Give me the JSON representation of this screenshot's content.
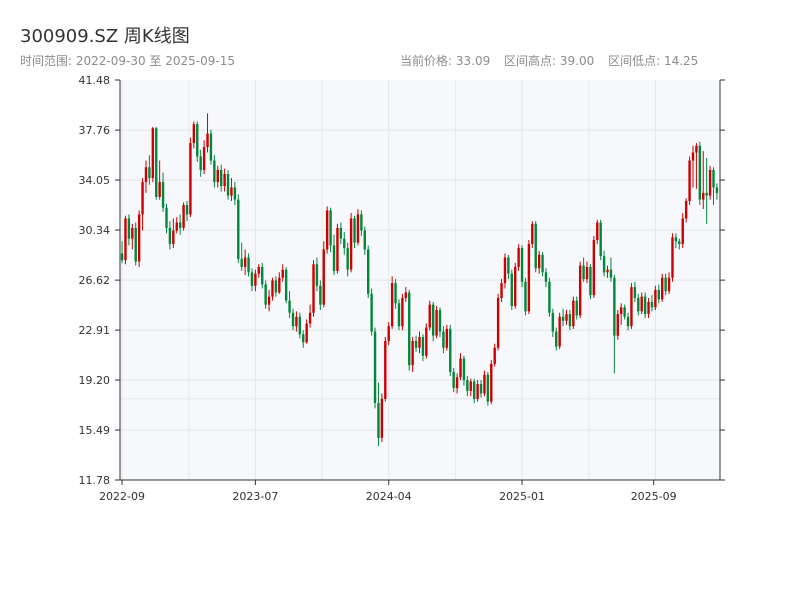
{
  "header": {
    "title": "300909.SZ 周K线图",
    "range_text": "时间范围: 2022-09-30 至 2025-09-15",
    "current_price": "当前价格: 33.09",
    "range_high": "区间高点: 39.00",
    "range_low": "区间低点: 14.25"
  },
  "chart_data": {
    "type": "candlestick",
    "title": "300909.SZ 周K线图",
    "ylim": [
      11.78,
      41.48
    ],
    "y_ticks": [
      "41.48",
      "37.76",
      "34.05",
      "30.34",
      "26.62",
      "22.91",
      "19.20",
      "15.49",
      "11.78"
    ],
    "x_ticks": [
      "2022-09",
      "2023-07",
      "2024-04",
      "2025-01",
      "2025-09"
    ],
    "grid": true,
    "colors": {
      "up": "#cc0000",
      "down": "#00873c"
    },
    "candles": [
      [
        28.6,
        28.1,
        29.5,
        27.9
      ],
      [
        28.1,
        31.2,
        31.4,
        27.8
      ],
      [
        31.2,
        29.7,
        31.5,
        29.2
      ],
      [
        29.7,
        30.5,
        30.8,
        28.9
      ],
      [
        30.5,
        28.0,
        30.9,
        27.7
      ],
      [
        28.0,
        31.5,
        31.8,
        27.6
      ],
      [
        31.5,
        33.9,
        34.2,
        30.3
      ],
      [
        33.9,
        35.0,
        35.5,
        33.1
      ],
      [
        35.0,
        34.2,
        35.9,
        33.7
      ],
      [
        34.2,
        37.9,
        38.0,
        33.9
      ],
      [
        37.9,
        32.8,
        38.0,
        32.6
      ],
      [
        32.8,
        33.9,
        35.5,
        32.6
      ],
      [
        33.9,
        32.0,
        34.6,
        31.7
      ],
      [
        32.0,
        30.5,
        32.3,
        30.1
      ],
      [
        30.5,
        29.3,
        31.0,
        28.9
      ],
      [
        29.3,
        30.3,
        31.2,
        29.0
      ],
      [
        30.3,
        30.9,
        31.3,
        30.1
      ],
      [
        30.9,
        30.5,
        31.5,
        30.0
      ],
      [
        30.5,
        32.2,
        32.4,
        30.3
      ],
      [
        32.2,
        31.5,
        32.5,
        31.0
      ],
      [
        31.5,
        36.8,
        37.2,
        31.3
      ],
      [
        36.8,
        38.2,
        38.4,
        36.4
      ],
      [
        38.2,
        35.8,
        38.4,
        35.4
      ],
      [
        35.8,
        34.8,
        36.3,
        34.3
      ],
      [
        34.8,
        36.5,
        37.0,
        34.5
      ],
      [
        36.5,
        37.5,
        39.0,
        36.1
      ],
      [
        37.5,
        35.5,
        37.8,
        35.2
      ],
      [
        35.5,
        33.9,
        35.9,
        33.5
      ],
      [
        33.9,
        34.8,
        35.1,
        33.5
      ],
      [
        34.8,
        33.6,
        35.2,
        33.2
      ],
      [
        33.6,
        34.5,
        34.9,
        33.2
      ],
      [
        34.5,
        32.9,
        34.8,
        32.6
      ],
      [
        32.9,
        33.5,
        34.2,
        32.5
      ],
      [
        33.5,
        32.6,
        33.9,
        32.2
      ],
      [
        32.6,
        28.2,
        33.0,
        27.9
      ],
      [
        28.2,
        27.6,
        29.4,
        27.3
      ],
      [
        27.6,
        28.3,
        28.9,
        27.0
      ],
      [
        28.3,
        27.2,
        28.6,
        26.9
      ],
      [
        27.2,
        26.2,
        27.5,
        25.8
      ],
      [
        26.2,
        27.1,
        27.4,
        25.8
      ],
      [
        27.1,
        27.6,
        27.8,
        26.8
      ],
      [
        27.6,
        26.3,
        27.9,
        26.0
      ],
      [
        26.3,
        24.8,
        26.6,
        24.5
      ],
      [
        24.8,
        25.4,
        25.9,
        24.3
      ],
      [
        25.4,
        26.6,
        26.8,
        25.1
      ],
      [
        26.6,
        25.7,
        26.9,
        25.4
      ],
      [
        25.7,
        26.8,
        27.2,
        25.6
      ],
      [
        26.8,
        27.4,
        27.8,
        26.5
      ],
      [
        27.4,
        25.1,
        27.6,
        24.9
      ],
      [
        25.1,
        24.2,
        25.8,
        23.8
      ],
      [
        24.2,
        23.2,
        24.5,
        22.9
      ],
      [
        23.2,
        23.9,
        24.3,
        22.8
      ],
      [
        23.9,
        22.6,
        24.2,
        22.3
      ],
      [
        22.6,
        22.0,
        22.9,
        21.6
      ],
      [
        22.0,
        23.4,
        23.7,
        21.9
      ],
      [
        23.4,
        24.2,
        24.8,
        23.1
      ],
      [
        24.2,
        27.8,
        28.1,
        23.9
      ],
      [
        27.8,
        26.2,
        28.3,
        25.8
      ],
      [
        26.2,
        24.8,
        26.6,
        24.4
      ],
      [
        24.8,
        28.9,
        29.5,
        24.6
      ],
      [
        28.9,
        31.8,
        32.1,
        28.6
      ],
      [
        31.8,
        29.2,
        32.0,
        28.7
      ],
      [
        29.2,
        27.3,
        30.0,
        27.0
      ],
      [
        27.3,
        30.5,
        30.8,
        27.1
      ],
      [
        30.5,
        29.7,
        30.9,
        29.3
      ],
      [
        29.7,
        29.0,
        30.2,
        28.5
      ],
      [
        29.0,
        27.4,
        29.4,
        26.9
      ],
      [
        27.4,
        31.2,
        31.6,
        27.2
      ],
      [
        31.2,
        29.4,
        31.4,
        29.0
      ],
      [
        29.4,
        31.5,
        31.9,
        29.2
      ],
      [
        31.5,
        30.3,
        31.8,
        29.9
      ],
      [
        30.3,
        28.9,
        30.6,
        28.5
      ],
      [
        28.9,
        25.6,
        29.2,
        25.3
      ],
      [
        25.6,
        22.8,
        26.0,
        22.5
      ],
      [
        22.8,
        17.5,
        23.1,
        17.1
      ],
      [
        17.5,
        14.9,
        19.0,
        14.3
      ],
      [
        14.9,
        17.8,
        18.2,
        14.6
      ],
      [
        17.8,
        22.1,
        22.4,
        17.6
      ],
      [
        22.1,
        23.2,
        23.5,
        21.8
      ],
      [
        23.2,
        26.4,
        26.9,
        23.0
      ],
      [
        26.4,
        24.9,
        26.7,
        24.5
      ],
      [
        24.9,
        23.2,
        25.2,
        22.9
      ],
      [
        23.2,
        25.3,
        25.6,
        22.9
      ],
      [
        25.3,
        25.7,
        26.1,
        25.0
      ],
      [
        25.7,
        20.3,
        25.9,
        19.9
      ],
      [
        20.3,
        22.1,
        22.4,
        19.8
      ],
      [
        22.1,
        21.6,
        22.5,
        21.3
      ],
      [
        21.6,
        22.4,
        22.8,
        21.2
      ],
      [
        22.4,
        21.0,
        22.6,
        20.6
      ],
      [
        21.0,
        23.1,
        23.4,
        20.8
      ],
      [
        23.1,
        24.8,
        25.1,
        22.9
      ],
      [
        24.8,
        22.5,
        25.0,
        22.1
      ],
      [
        22.5,
        24.4,
        24.7,
        22.3
      ],
      [
        24.4,
        22.8,
        24.6,
        22.4
      ],
      [
        22.8,
        21.6,
        23.2,
        21.2
      ],
      [
        21.6,
        23.0,
        23.3,
        21.4
      ],
      [
        23.0,
        19.8,
        23.3,
        19.5
      ],
      [
        19.8,
        18.6,
        20.1,
        18.3
      ],
      [
        18.6,
        19.4,
        19.7,
        18.2
      ],
      [
        19.4,
        20.8,
        21.2,
        19.2
      ],
      [
        20.8,
        19.2,
        21.0,
        18.8
      ],
      [
        19.2,
        18.4,
        19.5,
        18.0
      ],
      [
        18.4,
        19.1,
        19.3,
        18.0
      ],
      [
        19.1,
        17.8,
        19.3,
        17.5
      ],
      [
        17.8,
        18.9,
        19.2,
        17.6
      ],
      [
        18.9,
        18.2,
        19.2,
        17.9
      ],
      [
        18.2,
        19.6,
        19.9,
        18.0
      ],
      [
        19.6,
        17.6,
        19.8,
        17.3
      ],
      [
        17.6,
        20.4,
        20.7,
        17.4
      ],
      [
        20.4,
        21.6,
        21.9,
        20.2
      ],
      [
        21.6,
        25.3,
        25.6,
        21.4
      ],
      [
        25.3,
        26.4,
        26.7,
        25.0
      ],
      [
        26.4,
        28.3,
        28.6,
        26.0
      ],
      [
        28.3,
        27.1,
        28.5,
        26.7
      ],
      [
        27.1,
        24.7,
        27.4,
        24.4
      ],
      [
        24.7,
        27.6,
        27.9,
        24.5
      ],
      [
        27.6,
        29.0,
        29.3,
        27.3
      ],
      [
        29.0,
        26.5,
        29.2,
        26.1
      ],
      [
        26.5,
        24.3,
        26.8,
        24.0
      ],
      [
        24.3,
        29.3,
        29.6,
        24.1
      ],
      [
        29.3,
        30.8,
        31.0,
        29.0
      ],
      [
        30.8,
        27.5,
        31.0,
        27.2
      ],
      [
        27.5,
        28.5,
        28.8,
        27.1
      ],
      [
        28.5,
        27.2,
        28.7,
        26.9
      ],
      [
        27.2,
        26.5,
        27.5,
        26.1
      ],
      [
        26.5,
        24.2,
        26.8,
        23.9
      ],
      [
        24.2,
        22.8,
        24.5,
        22.4
      ],
      [
        22.8,
        21.7,
        23.1,
        21.4
      ],
      [
        21.7,
        23.9,
        24.2,
        21.5
      ],
      [
        23.9,
        23.6,
        24.5,
        23.2
      ],
      [
        23.6,
        24.1,
        24.4,
        23.3
      ],
      [
        24.1,
        23.2,
        24.4,
        22.9
      ],
      [
        23.2,
        25.1,
        25.4,
        23.0
      ],
      [
        25.1,
        24.0,
        25.4,
        23.7
      ],
      [
        24.0,
        27.7,
        28.0,
        23.8
      ],
      [
        27.7,
        26.7,
        28.3,
        26.5
      ],
      [
        26.7,
        27.6,
        28.0,
        26.4
      ],
      [
        27.6,
        25.5,
        27.8,
        25.2
      ],
      [
        25.5,
        29.6,
        29.9,
        25.3
      ],
      [
        29.6,
        30.9,
        31.1,
        29.3
      ],
      [
        30.9,
        28.4,
        31.1,
        28.1
      ],
      [
        28.4,
        27.2,
        28.8,
        26.9
      ],
      [
        27.2,
        27.4,
        27.7,
        26.8
      ],
      [
        27.4,
        26.8,
        28.3,
        26.5
      ],
      [
        26.8,
        22.5,
        27.0,
        19.7
      ],
      [
        22.5,
        24.1,
        24.4,
        22.2
      ],
      [
        24.1,
        24.6,
        24.9,
        23.3
      ],
      [
        24.6,
        23.9,
        24.8,
        23.7
      ],
      [
        23.9,
        23.2,
        24.2,
        22.9
      ],
      [
        23.2,
        26.1,
        26.4,
        23.0
      ],
      [
        26.1,
        25.3,
        26.5,
        25.0
      ],
      [
        25.3,
        24.3,
        25.6,
        24.0
      ],
      [
        24.3,
        25.4,
        25.7,
        24.1
      ],
      [
        25.4,
        24.1,
        25.7,
        23.8
      ],
      [
        24.1,
        25.0,
        25.3,
        23.8
      ],
      [
        25.0,
        24.6,
        25.5,
        24.3
      ],
      [
        24.6,
        25.9,
        26.2,
        24.4
      ],
      [
        25.9,
        25.2,
        26.3,
        24.9
      ],
      [
        25.2,
        26.8,
        27.1,
        25.0
      ],
      [
        26.8,
        25.8,
        27.1,
        25.5
      ],
      [
        25.8,
        26.8,
        27.2,
        25.6
      ],
      [
        26.8,
        29.8,
        30.1,
        26.5
      ],
      [
        29.8,
        29.5,
        30.1,
        29.0
      ],
      [
        29.5,
        29.3,
        29.7,
        28.9
      ],
      [
        29.3,
        31.2,
        31.6,
        29.0
      ],
      [
        31.2,
        32.5,
        32.7,
        30.9
      ],
      [
        32.5,
        35.5,
        35.8,
        32.2
      ],
      [
        35.5,
        36.1,
        36.6,
        33.5
      ],
      [
        36.1,
        36.6,
        36.8,
        33.4
      ],
      [
        36.6,
        32.6,
        36.9,
        32.2
      ],
      [
        32.6,
        33.1,
        36.2,
        31.9
      ],
      [
        33.1,
        32.9,
        35.7,
        30.8
      ],
      [
        32.9,
        34.8,
        35.1,
        32.6
      ],
      [
        34.8,
        33.5,
        35.0,
        32.2
      ],
      [
        33.5,
        33.09,
        33.8,
        32.6
      ]
    ]
  }
}
